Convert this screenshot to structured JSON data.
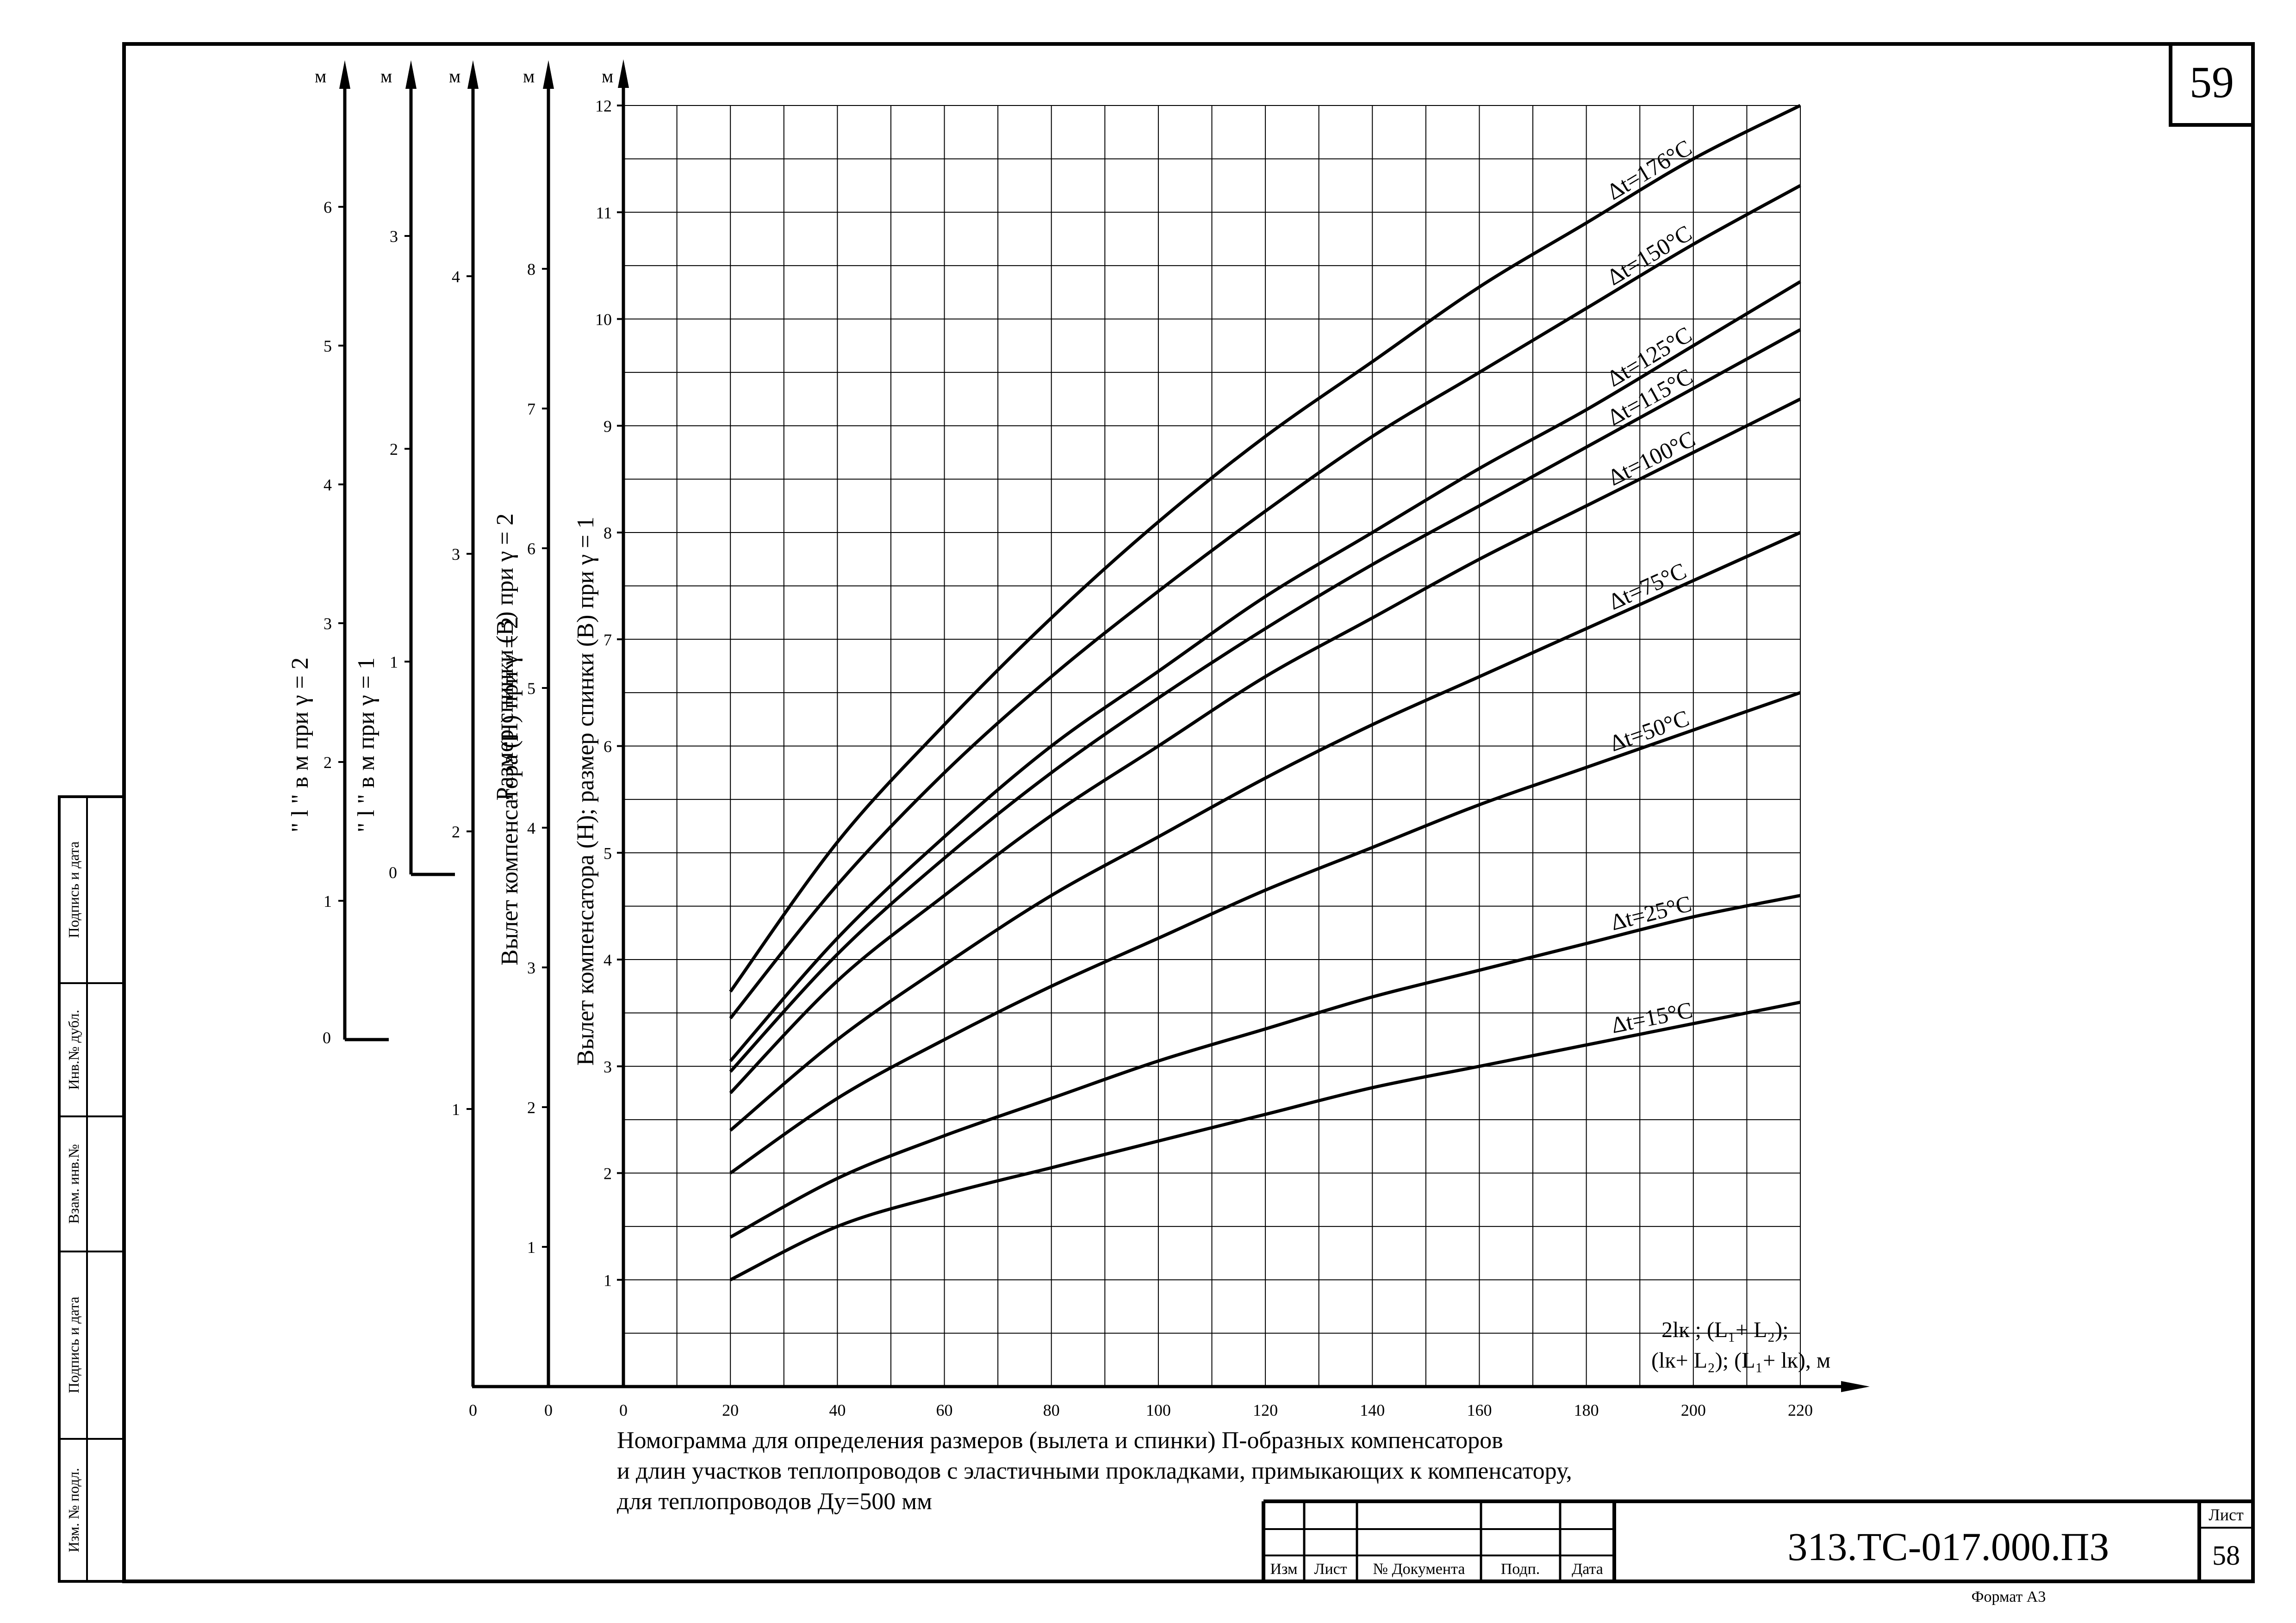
{
  "page_number": "59",
  "chart_data": {
    "type": "line",
    "x": [
      20,
      40,
      60,
      80,
      100,
      120,
      140,
      160,
      180,
      200,
      220
    ],
    "xlim": [
      0,
      220
    ],
    "ylim": [
      0,
      12
    ],
    "x_ticks": [
      "0",
      "20",
      "40",
      "60",
      "80",
      "100",
      "120",
      "140",
      "160",
      "180",
      "200",
      "220"
    ],
    "y_ticks": [
      "1",
      "2",
      "3",
      "4",
      "5",
      "6",
      "7",
      "8",
      "9",
      "10",
      "11",
      "12"
    ],
    "unit_m": "м",
    "xlabel_line1": "2lк ; (L₁+ L₂);",
    "xlabel_line2": "(lк+ L₂); (L₁+ lк), м",
    "ylabel_main": "Вылет компенсатора (Н); размер спинки (В) при γ = 1",
    "grid": true,
    "series": [
      {
        "name": "Δt=176°С",
        "values": [
          3.7,
          5.1,
          6.2,
          7.2,
          8.1,
          8.9,
          9.6,
          10.3,
          10.9,
          11.5,
          12.0
        ]
      },
      {
        "name": "Δt=150°С",
        "values": [
          3.45,
          4.7,
          5.75,
          6.65,
          7.45,
          8.2,
          8.9,
          9.5,
          10.1,
          10.7,
          11.25
        ]
      },
      {
        "name": "Δt=125°С",
        "values": [
          3.05,
          4.2,
          5.15,
          6.0,
          6.7,
          7.4,
          8.0,
          8.6,
          9.15,
          9.75,
          10.35
        ]
      },
      {
        "name": "Δt=115°С",
        "values": [
          2.95,
          4.05,
          4.95,
          5.75,
          6.45,
          7.1,
          7.7,
          8.25,
          8.8,
          9.35,
          9.9
        ]
      },
      {
        "name": "Δt=100°С",
        "values": [
          2.75,
          3.8,
          4.6,
          5.35,
          6.0,
          6.65,
          7.2,
          7.75,
          8.25,
          8.75,
          9.25
        ]
      },
      {
        "name": "Δt=75°С",
        "values": [
          2.4,
          3.25,
          3.95,
          4.6,
          5.15,
          5.7,
          6.2,
          6.65,
          7.1,
          7.55,
          8.0
        ]
      },
      {
        "name": "Δt=50°С",
        "values": [
          2.0,
          2.7,
          3.25,
          3.75,
          4.2,
          4.65,
          5.05,
          5.45,
          5.8,
          6.15,
          6.5
        ]
      },
      {
        "name": "Δt=25°С",
        "values": [
          1.4,
          1.95,
          2.35,
          2.7,
          3.05,
          3.35,
          3.65,
          3.9,
          4.15,
          4.4,
          4.6
        ]
      },
      {
        "name": "Δt=15°С",
        "values": [
          1.0,
          1.5,
          1.8,
          2.05,
          2.3,
          2.55,
          2.8,
          3.0,
          3.2,
          3.4,
          3.6
        ]
      }
    ]
  },
  "aux_axes": [
    {
      "label": "Вылет компенсатора (Н) при γ = 2",
      "unit": "м",
      "ticks": [
        "1",
        "2",
        "3",
        "4",
        "5",
        "6",
        "7",
        "8"
      ],
      "zero": "0"
    },
    {
      "label": "Размер спинки (В) при γ = 2",
      "unit": "м",
      "ticks": [
        "1",
        "2",
        "3",
        "4"
      ],
      "zero": "0"
    },
    {
      "label": "\" l \" в м  при γ = 1",
      "unit": "м",
      "ticks": [
        "1",
        "2",
        "3"
      ],
      "zero": "0"
    },
    {
      "label": "\" l \" в м  при γ = 2",
      "unit": "м",
      "ticks": [
        "1",
        "2",
        "3",
        "4",
        "5",
        "6"
      ],
      "zero": "0"
    }
  ],
  "caption": [
    "Номограмма для определения размеров (вылета и спинки) П-образных компенсаторов",
    "и длин участков теплопроводов с эластичными прокладками, примыкающих к компенсатору,",
    "для теплопроводов Ду=500 мм"
  ],
  "side_stamp": [
    "Подпись и дата",
    "Инв.№ дубл.",
    "Взам. инв.№",
    "Подпись и дата",
    "Изм. № подл."
  ],
  "title_block": {
    "headers": [
      "Изм",
      "Лист",
      "№ Документа",
      "Подп.",
      "Дата"
    ],
    "doc_code": "313.ТС-017.000.ПЗ",
    "sheet_label": "Лист",
    "sheet_number": "58",
    "format": "Формат А3"
  }
}
